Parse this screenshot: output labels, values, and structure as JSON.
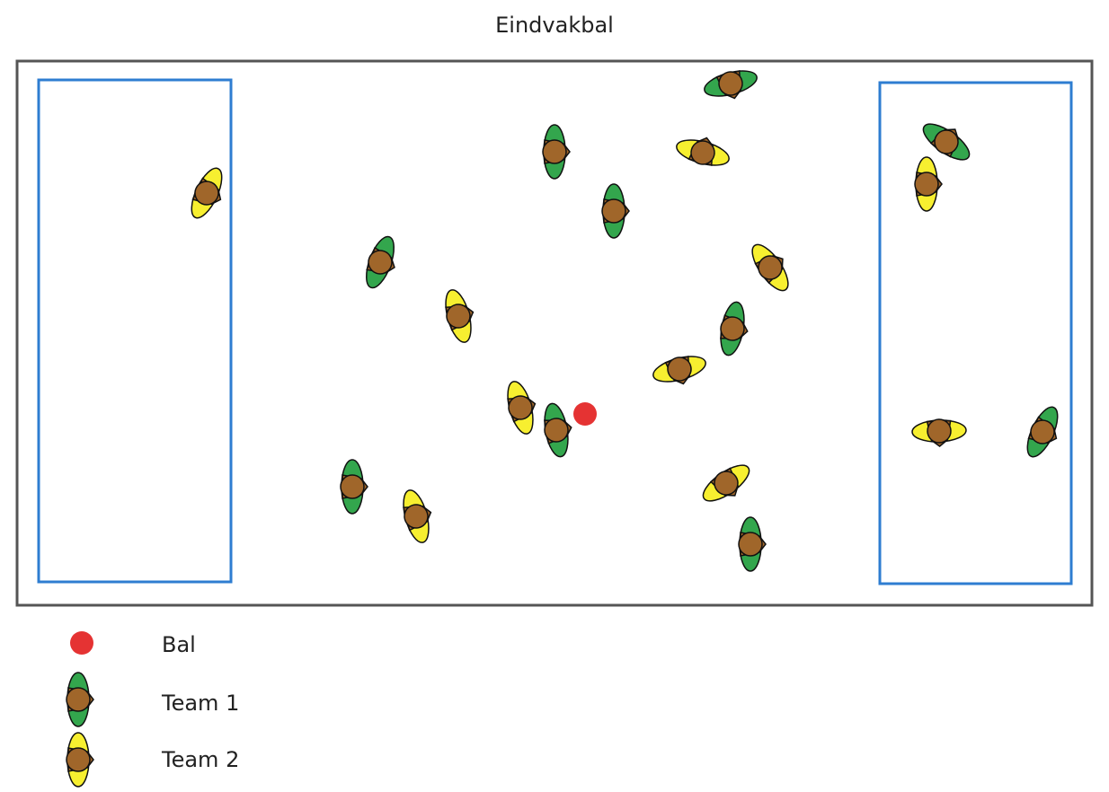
{
  "title": "Eindvakbal",
  "colors": {
    "field_border": "#555555",
    "end_zone_border": "#2e7dd1",
    "ball": "#e53333",
    "player_body": "#a0662a",
    "team1": "#33a64d",
    "team2": "#f7ef30",
    "outline": "#111111"
  },
  "legend": {
    "ball_label": "Bal",
    "team1_label": "Team 1",
    "team2_label": "Team 2"
  }
}
